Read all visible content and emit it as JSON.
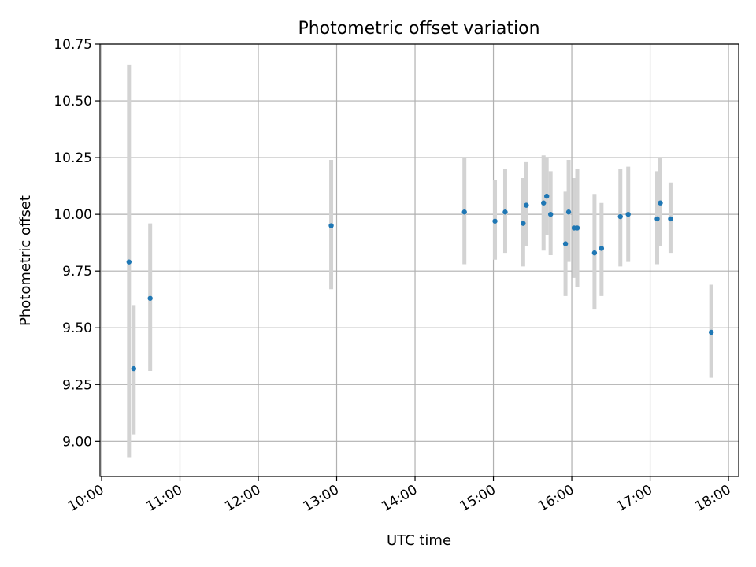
{
  "chart_data": {
    "type": "scatter",
    "title": "Photometric offset variation",
    "xlabel": "UTC time",
    "ylabel": "Photometric offset",
    "grid": true,
    "xlim": [
      9.98,
      18.13
    ],
    "ylim": [
      8.845,
      10.75
    ],
    "x_ticks": [
      {
        "value": 10,
        "label": "10:00"
      },
      {
        "value": 11,
        "label": "11:00"
      },
      {
        "value": 12,
        "label": "12:00"
      },
      {
        "value": 13,
        "label": "13:00"
      },
      {
        "value": 14,
        "label": "14:00"
      },
      {
        "value": 15,
        "label": "15:00"
      },
      {
        "value": 16,
        "label": "16:00"
      },
      {
        "value": 17,
        "label": "17:00"
      },
      {
        "value": 18,
        "label": "18:00"
      }
    ],
    "y_ticks": [
      {
        "value": 9.0,
        "label": "9.00"
      },
      {
        "value": 9.25,
        "label": "9.25"
      },
      {
        "value": 9.5,
        "label": "9.50"
      },
      {
        "value": 9.75,
        "label": "9.75"
      },
      {
        "value": 10.0,
        "label": "10.00"
      },
      {
        "value": 10.25,
        "label": "10.25"
      },
      {
        "value": 10.5,
        "label": "10.50"
      },
      {
        "value": 10.75,
        "label": "10.75"
      }
    ],
    "colors": {
      "point": "#1f77b4",
      "errorbar": "#d3d3d3",
      "grid": "#b0b0b0"
    },
    "series": [
      {
        "points": [
          {
            "x": 10.35,
            "y": 9.79,
            "ylow": 8.93,
            "yhigh": 10.66
          },
          {
            "x": 10.41,
            "y": 9.32,
            "ylow": 9.03,
            "yhigh": 9.6
          },
          {
            "x": 10.62,
            "y": 9.63,
            "ylow": 9.31,
            "yhigh": 9.96
          },
          {
            "x": 12.93,
            "y": 9.95,
            "ylow": 9.67,
            "yhigh": 10.24
          },
          {
            "x": 14.63,
            "y": 10.01,
            "ylow": 9.78,
            "yhigh": 10.25
          },
          {
            "x": 15.02,
            "y": 9.97,
            "ylow": 9.8,
            "yhigh": 10.15
          },
          {
            "x": 15.15,
            "y": 10.01,
            "ylow": 9.83,
            "yhigh": 10.2
          },
          {
            "x": 15.38,
            "y": 9.96,
            "ylow": 9.77,
            "yhigh": 10.16
          },
          {
            "x": 15.42,
            "y": 10.04,
            "ylow": 9.86,
            "yhigh": 10.23
          },
          {
            "x": 15.64,
            "y": 10.05,
            "ylow": 9.84,
            "yhigh": 10.26
          },
          {
            "x": 15.68,
            "y": 10.08,
            "ylow": 9.91,
            "yhigh": 10.25
          },
          {
            "x": 15.73,
            "y": 10.0,
            "ylow": 9.82,
            "yhigh": 10.19
          },
          {
            "x": 15.92,
            "y": 9.87,
            "ylow": 9.64,
            "yhigh": 10.1
          },
          {
            "x": 15.96,
            "y": 10.01,
            "ylow": 9.79,
            "yhigh": 10.24
          },
          {
            "x": 16.03,
            "y": 9.94,
            "ylow": 9.72,
            "yhigh": 10.16
          },
          {
            "x": 16.07,
            "y": 9.94,
            "ylow": 9.68,
            "yhigh": 10.2
          },
          {
            "x": 16.29,
            "y": 9.83,
            "ylow": 9.58,
            "yhigh": 10.09
          },
          {
            "x": 16.38,
            "y": 9.85,
            "ylow": 9.64,
            "yhigh": 10.05
          },
          {
            "x": 16.62,
            "y": 9.99,
            "ylow": 9.77,
            "yhigh": 10.2
          },
          {
            "x": 16.72,
            "y": 10.0,
            "ylow": 9.79,
            "yhigh": 10.21
          },
          {
            "x": 17.09,
            "y": 9.98,
            "ylow": 9.78,
            "yhigh": 10.19
          },
          {
            "x": 17.13,
            "y": 10.05,
            "ylow": 9.86,
            "yhigh": 10.25
          },
          {
            "x": 17.26,
            "y": 9.98,
            "ylow": 9.83,
            "yhigh": 10.14
          },
          {
            "x": 17.78,
            "y": 9.48,
            "ylow": 9.28,
            "yhigh": 9.69
          }
        ]
      }
    ]
  }
}
